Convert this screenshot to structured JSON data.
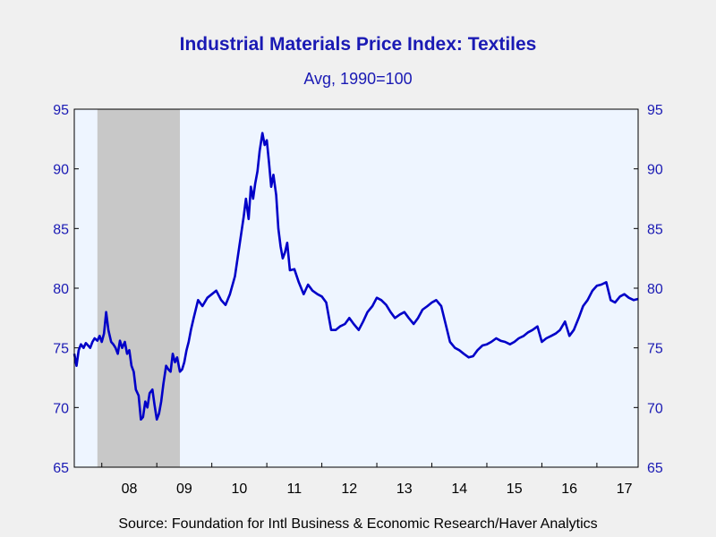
{
  "chart_data": {
    "type": "line",
    "title": "Industrial Materials Price Index: Textiles",
    "subtitle": "Avg, 1990=100",
    "source": "Source:  Foundation for Intl Business & Economic Research/Haver Analytics",
    "x_tick_labels": [
      "08",
      "09",
      "10",
      "11",
      "12",
      "13",
      "14",
      "15",
      "16",
      "17"
    ],
    "y_ticks": [
      65,
      70,
      75,
      80,
      85,
      90,
      95
    ],
    "ylim": [
      65,
      95
    ],
    "xlim": [
      2007.5,
      2017.75
    ],
    "recession_band": [
      2007.92,
      2009.42
    ],
    "colors": {
      "line": "#0000c8",
      "plot_bg": "#eef5ff",
      "recession": "#c8c8c8",
      "axis_text": "#1a1ab4"
    },
    "series": [
      {
        "x": [
          2007.5,
          2007.54,
          2007.58,
          2007.62,
          2007.67,
          2007.71,
          2007.75,
          2007.79,
          2007.83,
          2007.87,
          2007.92,
          2007.96,
          2008.0,
          2008.04,
          2008.08,
          2008.12,
          2008.17,
          2008.21,
          2008.25,
          2008.29,
          2008.33,
          2008.37,
          2008.42,
          2008.46,
          2008.5,
          2008.54,
          2008.58,
          2008.62,
          2008.67,
          2008.71,
          2008.75,
          2008.79,
          2008.83,
          2008.87,
          2008.92,
          2008.96,
          2009.0,
          2009.04,
          2009.08,
          2009.12,
          2009.17,
          2009.21,
          2009.25,
          2009.29,
          2009.33,
          2009.37,
          2009.42,
          2009.46,
          2009.5,
          2009.54,
          2009.58,
          2009.62,
          2009.67,
          2009.75,
          2009.83,
          2009.92,
          2010.0,
          2010.08,
          2010.17,
          2010.25,
          2010.33,
          2010.42,
          2010.5,
          2010.58,
          2010.62,
          2010.67,
          2010.71,
          2010.75,
          2010.79,
          2010.83,
          2010.87,
          2010.92,
          2010.96,
          2011.0,
          2011.04,
          2011.08,
          2011.12,
          2011.17,
          2011.21,
          2011.25,
          2011.29,
          2011.33,
          2011.37,
          2011.42,
          2011.5,
          2011.58,
          2011.67,
          2011.75,
          2011.83,
          2011.92,
          2012.0,
          2012.08,
          2012.17,
          2012.25,
          2012.33,
          2012.42,
          2012.5,
          2012.58,
          2012.67,
          2012.75,
          2012.83,
          2012.92,
          2013.0,
          2013.08,
          2013.17,
          2013.25,
          2013.33,
          2013.42,
          2013.5,
          2013.58,
          2013.67,
          2013.75,
          2013.83,
          2013.92,
          2014.0,
          2014.08,
          2014.17,
          2014.25,
          2014.33,
          2014.42,
          2014.5,
          2014.58,
          2014.67,
          2014.75,
          2014.83,
          2014.92,
          2015.0,
          2015.08,
          2015.17,
          2015.25,
          2015.33,
          2015.42,
          2015.5,
          2015.58,
          2015.67,
          2015.75,
          2015.83,
          2015.92,
          2016.0,
          2016.08,
          2016.17,
          2016.25,
          2016.33,
          2016.42,
          2016.5,
          2016.58,
          2016.67,
          2016.75,
          2016.83,
          2016.92,
          2017.0,
          2017.08,
          2017.17,
          2017.25,
          2017.33,
          2017.42,
          2017.5,
          2017.58,
          2017.67,
          2017.75
        ],
        "y": [
          74.5,
          73.5,
          74.8,
          75.3,
          75.0,
          75.4,
          75.2,
          75.0,
          75.5,
          75.8,
          75.6,
          76.0,
          75.5,
          76.2,
          78.0,
          76.5,
          75.5,
          75.3,
          75.0,
          74.5,
          75.6,
          75.0,
          75.5,
          74.5,
          74.8,
          73.5,
          73.0,
          71.5,
          71.0,
          69.0,
          69.2,
          70.5,
          70.0,
          71.2,
          71.5,
          70.2,
          69.0,
          69.5,
          70.5,
          72.0,
          73.5,
          73.2,
          73.0,
          74.5,
          73.8,
          74.2,
          73.0,
          73.2,
          73.8,
          74.8,
          75.5,
          76.5,
          77.5,
          79.0,
          78.5,
          79.2,
          79.5,
          79.8,
          79.0,
          78.6,
          79.5,
          81.0,
          83.5,
          86.0,
          87.5,
          85.8,
          88.5,
          87.5,
          88.8,
          89.8,
          91.5,
          93.0,
          92.0,
          92.4,
          90.5,
          88.5,
          89.5,
          87.8,
          85.0,
          83.5,
          82.5,
          83.0,
          83.8,
          81.5,
          81.6,
          80.5,
          79.5,
          80.3,
          79.8,
          79.5,
          79.3,
          78.8,
          76.5,
          76.5,
          76.8,
          77.0,
          77.5,
          77.0,
          76.5,
          77.2,
          78.0,
          78.5,
          79.2,
          79.0,
          78.6,
          78.0,
          77.5,
          77.8,
          78.0,
          77.5,
          77.0,
          77.5,
          78.2,
          78.5,
          78.8,
          79.0,
          78.5,
          77.0,
          75.5,
          75.0,
          74.8,
          74.5,
          74.2,
          74.3,
          74.8,
          75.2,
          75.3,
          75.5,
          75.8,
          75.6,
          75.5,
          75.3,
          75.5,
          75.8,
          76.0,
          76.3,
          76.5,
          76.8,
          75.5,
          75.8,
          76.0,
          76.2,
          76.5,
          77.2,
          76.0,
          76.5,
          77.5,
          78.5,
          79.0,
          79.8,
          80.2,
          80.3,
          80.5,
          79.0,
          78.8,
          79.3,
          79.5,
          79.2,
          79.0,
          79.1
        ]
      }
    ]
  }
}
